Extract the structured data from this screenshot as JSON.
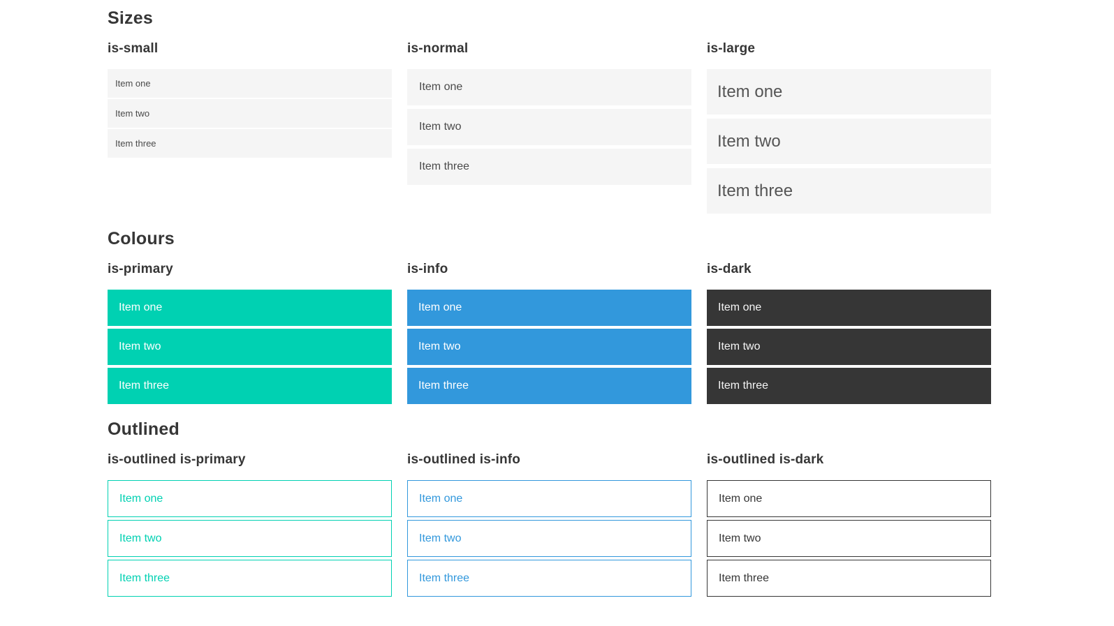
{
  "page": {
    "colors": {
      "primary": "#00d1b2",
      "info": "#3298dc",
      "dark": "#363636",
      "list_bg": "#f5f5f5",
      "text": "#4a4a4a",
      "heading": "#363636",
      "on_color_text": "#ffffff",
      "dark_item_text": "#f5f5f5",
      "page_bg": "#ffffff"
    },
    "sections": [
      {
        "title": "Sizes",
        "groups": [
          {
            "label": "is-small",
            "variant": "small",
            "items": [
              "Item one",
              "Item two",
              "Item three"
            ]
          },
          {
            "label": "is-normal",
            "variant": "normal",
            "items": [
              "Item one",
              "Item two",
              "Item three"
            ]
          },
          {
            "label": "is-large",
            "variant": "large",
            "items": [
              "Item one",
              "Item two",
              "Item three"
            ]
          }
        ]
      },
      {
        "title": "Colours",
        "groups": [
          {
            "label": "is-primary",
            "variant": "primary",
            "items": [
              "Item one",
              "Item two",
              "Item three"
            ]
          },
          {
            "label": "is-info",
            "variant": "info",
            "items": [
              "Item one",
              "Item two",
              "Item three"
            ]
          },
          {
            "label": "is-dark",
            "variant": "dark",
            "items": [
              "Item one",
              "Item two",
              "Item three"
            ]
          }
        ]
      },
      {
        "title": "Outlined",
        "groups": [
          {
            "label": "is-outlined is-primary",
            "variant": "outlined-primary",
            "items": [
              "Item one",
              "Item two",
              "Item three"
            ]
          },
          {
            "label": "is-outlined is-info",
            "variant": "outlined-info",
            "items": [
              "Item one",
              "Item two",
              "Item three"
            ]
          },
          {
            "label": "is-outlined is-dark",
            "variant": "outlined-dark",
            "items": [
              "Item one",
              "Item two",
              "Item three"
            ]
          }
        ]
      }
    ]
  }
}
